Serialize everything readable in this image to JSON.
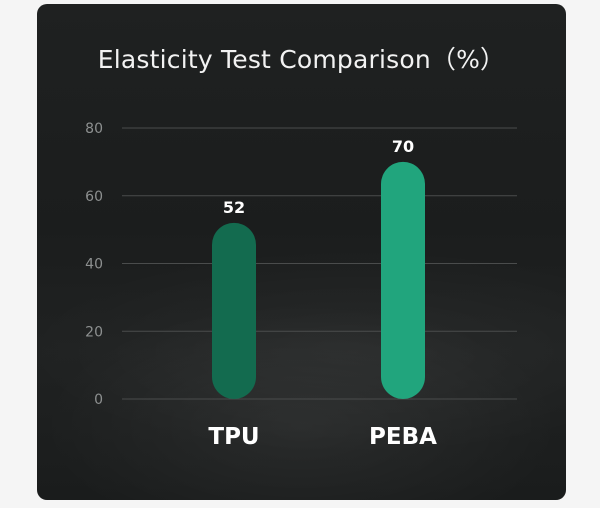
{
  "chart_data": {
    "type": "bar",
    "title": "Elasticity Test Comparison（%）",
    "categories": [
      "TPU",
      "PEBA"
    ],
    "values": [
      52,
      70
    ],
    "ylim": [
      0,
      80
    ],
    "yticks": [
      0,
      20,
      40,
      60,
      80
    ],
    "grid": true,
    "colors": [
      "#136b4f",
      "#21a57d"
    ],
    "xlabel": "",
    "ylabel": ""
  }
}
